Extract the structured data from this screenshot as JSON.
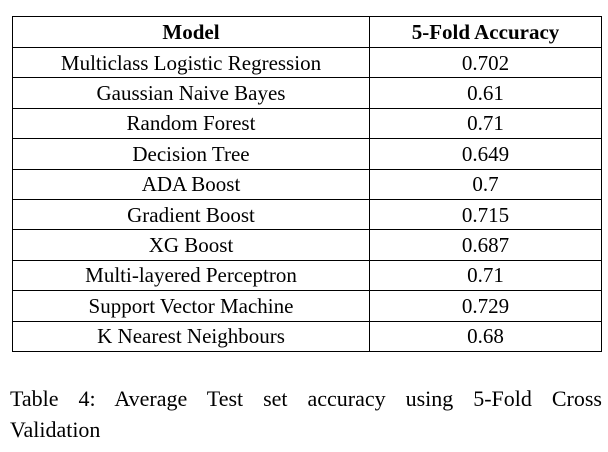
{
  "table": {
    "headers": [
      "Model",
      "5-Fold Accuracy"
    ],
    "rows": [
      [
        "Multiclass Logistic Regression",
        "0.702"
      ],
      [
        "Gaussian Naive Bayes",
        "0.61"
      ],
      [
        "Random Forest",
        "0.71"
      ],
      [
        "Decision Tree",
        "0.649"
      ],
      [
        "ADA Boost",
        "0.7"
      ],
      [
        "Gradient Boost",
        "0.715"
      ],
      [
        "XG Boost",
        "0.687"
      ],
      [
        "Multi-layered Perceptron",
        "0.71"
      ],
      [
        "Support Vector Machine",
        "0.729"
      ],
      [
        "K Nearest Neighbours",
        "0.68"
      ]
    ]
  },
  "caption": {
    "line1": "Table 4: Average Test set accuracy using 5-Fold Cross",
    "line2": "Validation"
  }
}
